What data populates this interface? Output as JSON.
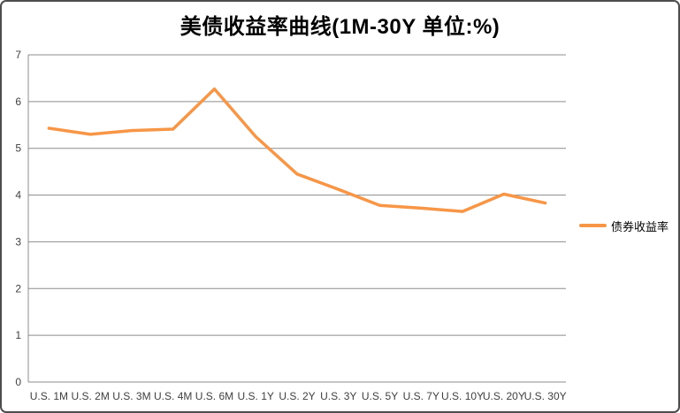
{
  "title": "美债收益率曲线(1M-30Y 单位:%)",
  "legend": {
    "label": "债券收益率"
  },
  "colors": {
    "line": "#F79646",
    "gridline": "#8c8c8c",
    "axis": "#8c8c8c",
    "tick_text": "#3f3f3f",
    "frame_border": "#4d4d4d"
  },
  "chart_data": {
    "type": "line",
    "title": "美债收益率曲线(1M-30Y 单位:%)",
    "categories": [
      "U.S. 1M",
      "U.S. 2M",
      "U.S. 3M",
      "U.S. 4M",
      "U.S. 6M",
      "U.S. 1Y",
      "U.S. 2Y",
      "U.S. 3Y",
      "U.S. 5Y",
      "U.S. 7Y",
      "U.S. 10Y",
      "U.S. 20Y",
      "U.S. 30Y"
    ],
    "series": [
      {
        "name": "债券收益率",
        "values": [
          5.43,
          5.3,
          5.38,
          5.41,
          6.27,
          5.25,
          4.45,
          4.12,
          3.78,
          3.72,
          3.65,
          4.02,
          3.83
        ]
      }
    ],
    "xlabel": "",
    "ylabel": "",
    "ylim": [
      0,
      7
    ],
    "y_ticks": [
      "0",
      "1",
      "2",
      "3",
      "4",
      "5",
      "6",
      "7"
    ],
    "grid": true,
    "legend_position": "right"
  }
}
